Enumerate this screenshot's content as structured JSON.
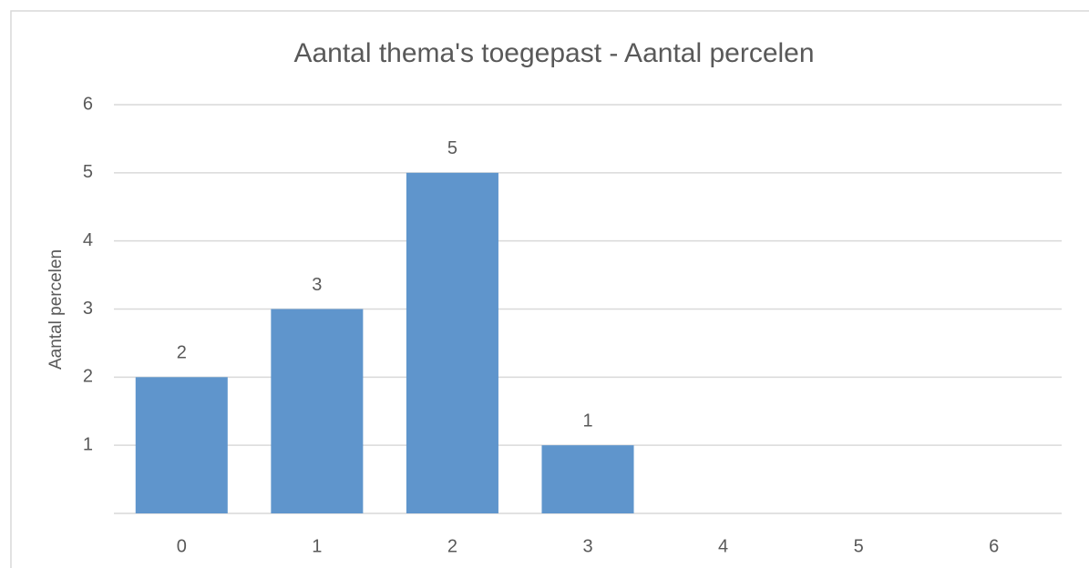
{
  "chart_data": {
    "type": "bar",
    "title": "Aantal thema's toegepast - Aantal percelen",
    "y_label": "Aantal percelen",
    "categories": [
      "0",
      "1",
      "2",
      "3",
      "4",
      "5",
      "6"
    ],
    "values": [
      2,
      3,
      5,
      1,
      null,
      null,
      null
    ],
    "color": "#5f95cc",
    "ylim": [
      0,
      6
    ],
    "yticks": [
      1,
      2,
      3,
      4,
      5,
      6
    ],
    "grid": true
  }
}
